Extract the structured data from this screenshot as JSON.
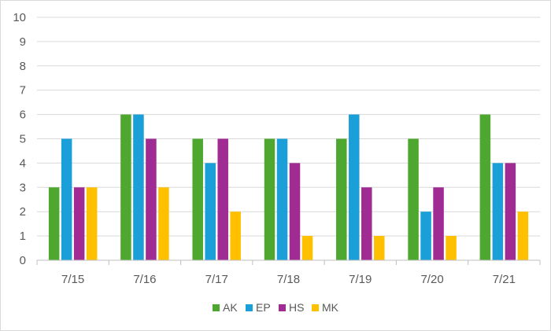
{
  "chart_data": {
    "type": "bar",
    "title": "",
    "xlabel": "",
    "ylabel": "",
    "ylim": [
      0,
      10
    ],
    "yticks": [
      "0",
      "1",
      "2",
      "3",
      "4",
      "5",
      "6",
      "7",
      "8",
      "9",
      "10"
    ],
    "grid": true,
    "legend_position": "bottom",
    "categories": [
      "7/15",
      "7/16",
      "7/17",
      "7/18",
      "7/19",
      "7/20",
      "7/21"
    ],
    "series": [
      {
        "name": "AK",
        "color": "#4ea72e",
        "values": [
          3,
          6,
          5,
          5,
          5,
          5,
          6
        ]
      },
      {
        "name": "EP",
        "color": "#1a9fd8",
        "values": [
          5,
          6,
          4,
          5,
          6,
          2,
          4
        ]
      },
      {
        "name": "HS",
        "color": "#a02b93",
        "values": [
          3,
          5,
          5,
          4,
          3,
          3,
          4
        ]
      },
      {
        "name": "MK",
        "color": "#ffc000",
        "values": [
          3,
          3,
          2,
          1,
          1,
          1,
          2
        ]
      }
    ]
  }
}
